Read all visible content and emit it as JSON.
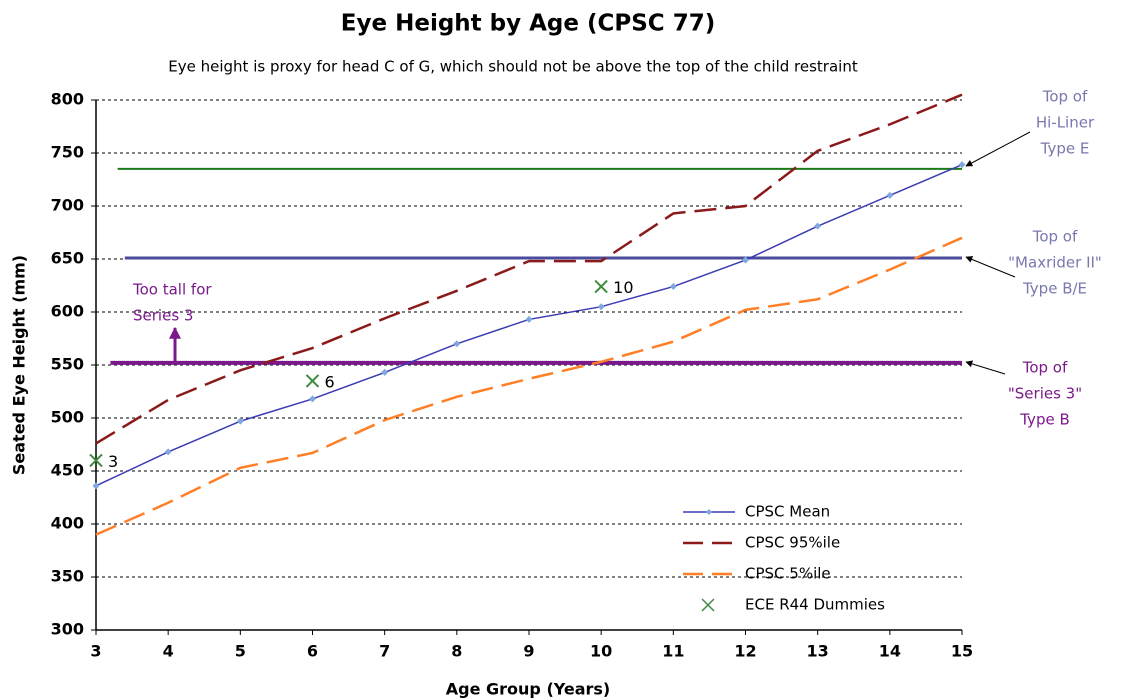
{
  "chart_data": {
    "type": "line",
    "title": "Eye Height by Age (CPSC 77)",
    "subtitle": "Eye height is proxy for head C of G, which should not be above  the top of the child restraint",
    "x_label": "Age Group (Years)",
    "y_label": "Seated Eye Height (mm)",
    "xlim": [
      3,
      15
    ],
    "xticks": [
      3,
      4,
      5,
      6,
      7,
      8,
      9,
      10,
      11,
      12,
      13,
      14,
      15
    ],
    "ylim": [
      300,
      800
    ],
    "yticks": [
      300,
      350,
      400,
      450,
      500,
      550,
      600,
      650,
      700,
      750,
      800
    ],
    "grid": true,
    "legend": "lower right",
    "series": [
      {
        "name": "CPSC Mean",
        "color": "#3b3bb3",
        "style": "solid-marker",
        "x": [
          3,
          4,
          5,
          6,
          7,
          8,
          9,
          10,
          11,
          12,
          13,
          14,
          15
        ],
        "values": [
          436,
          468,
          497,
          518,
          543,
          570,
          593,
          605,
          624,
          649,
          681,
          710,
          739
        ]
      },
      {
        "name": "CPSC 95%ile",
        "color": "#8b1a1a",
        "style": "dashed",
        "x": [
          3,
          4,
          5,
          6,
          7,
          8,
          9,
          10,
          11,
          12,
          13,
          14,
          15
        ],
        "values": [
          476,
          517,
          545,
          566,
          594,
          620,
          648,
          648,
          693,
          700,
          752,
          777,
          805
        ]
      },
      {
        "name": "CPSC 5%ile",
        "color": "#ff7f27",
        "style": "dashed",
        "x": [
          3,
          4,
          5,
          6,
          7,
          8,
          9,
          10,
          11,
          12,
          13,
          14,
          15
        ],
        "values": [
          390,
          420,
          453,
          467,
          498,
          520,
          537,
          553,
          572,
          602,
          612,
          640,
          670
        ]
      },
      {
        "name": "ECE R44 Dummies",
        "color": "#3c8c3c",
        "style": "x-marker",
        "x": [
          3,
          6,
          10
        ],
        "values": [
          460,
          535,
          624
        ]
      }
    ],
    "reference_lines": [
      {
        "value": 735,
        "x": [
          3.3,
          15
        ],
        "color": "#1a7a1a",
        "width": 2
      },
      {
        "value": 651,
        "x": [
          3.4,
          15
        ],
        "color": "#4b4b9b",
        "width": 3
      },
      {
        "value": 552,
        "x": [
          3.2,
          15
        ],
        "color": "#7a1a8a",
        "width": 4
      }
    ],
    "annotations": [
      {
        "lines": [
          "Top of",
          "Hi-Liner",
          "Type E"
        ],
        "color": "#7878b0"
      },
      {
        "lines": [
          "Top of",
          "\"Maxrider II\"",
          "Type B/E"
        ],
        "color": "#7878b0"
      },
      {
        "lines": [
          "Top of",
          "\"Series 3\"",
          "Type B"
        ],
        "color": "#7a1a8a"
      },
      {
        "lines": [
          "Too tall for",
          "Series 3"
        ],
        "color": "#7a1a8a"
      }
    ]
  }
}
